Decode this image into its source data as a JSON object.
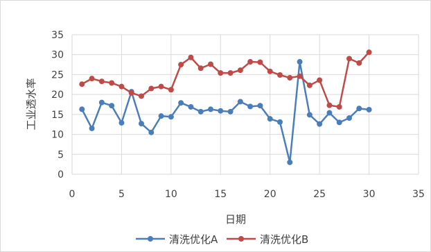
{
  "chart_data": {
    "type": "line",
    "xlabel": "日期",
    "ylabel": "工业透水率",
    "xlim": [
      0,
      35
    ],
    "ylim": [
      0,
      35
    ],
    "xticks": [
      0,
      5,
      10,
      15,
      20,
      25,
      30,
      35
    ],
    "yticks": [
      0,
      5,
      10,
      15,
      20,
      25,
      30,
      35
    ],
    "grid": true,
    "legend_position": "bottom",
    "x": [
      1,
      2,
      3,
      4,
      5,
      6,
      7,
      8,
      9,
      10,
      11,
      12,
      13,
      14,
      15,
      16,
      17,
      18,
      19,
      20,
      21,
      22,
      23,
      24,
      25,
      26,
      27,
      28,
      29,
      30
    ],
    "series": [
      {
        "name": "清洗优化A",
        "color": "#4a7ebb",
        "values": [
          16.3,
          11.5,
          18.0,
          17.2,
          12.9,
          20.7,
          12.7,
          10.5,
          14.6,
          14.4,
          17.9,
          16.9,
          15.7,
          16.3,
          15.9,
          15.7,
          18.2,
          17.0,
          17.2,
          13.9,
          13.1,
          3.0,
          28.2,
          14.9,
          12.6,
          15.4,
          13.0,
          14.1,
          16.5,
          16.2
        ]
      },
      {
        "name": "清洗优化B",
        "color": "#be4b48",
        "values": [
          22.6,
          24.0,
          23.3,
          22.9,
          22.0,
          20.4,
          19.6,
          21.5,
          22.0,
          21.2,
          27.5,
          29.3,
          26.6,
          27.6,
          25.4,
          25.4,
          26.1,
          28.2,
          28.1,
          25.8,
          24.9,
          24.2,
          24.6,
          22.3,
          23.6,
          17.3,
          16.9,
          29.0,
          27.9,
          30.6
        ]
      }
    ]
  }
}
